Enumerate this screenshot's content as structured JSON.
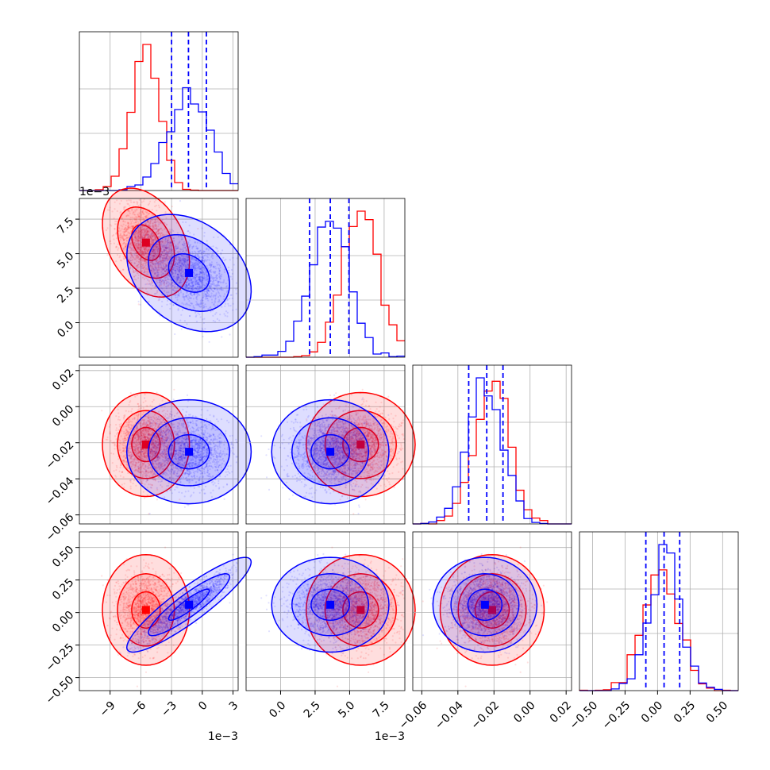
{
  "colors": {
    "series_a": "#ff0000",
    "series_b": "#0000ff",
    "grid": "#b0b0b0",
    "axes": "#000000"
  },
  "chart_data": {
    "type": "corner",
    "grid": true,
    "parameters": [
      {
        "range": [
          -12,
          3.5
        ],
        "ticks": [
          -9,
          -6,
          -3,
          0,
          3
        ],
        "tick_labels": [
          "−9",
          "−6",
          "−3",
          "0",
          "3"
        ],
        "offset_label": "1e−3"
      },
      {
        "range": [
          -2.5,
          9
        ],
        "ticks": [
          0.0,
          2.5,
          5.0,
          7.5
        ],
        "tick_labels": [
          "0.0",
          "2.5",
          "5.0",
          "7.5"
        ],
        "offset_label": "1e−3"
      },
      {
        "range": [
          -0.065,
          0.023
        ],
        "ticks": [
          -0.06,
          -0.04,
          -0.02,
          0.0,
          0.02
        ],
        "tick_labels": [
          "−0.06",
          "−0.04",
          "−0.02",
          "0.00",
          "0.02"
        ],
        "offset_label": ""
      },
      {
        "range": [
          -0.6,
          0.62
        ],
        "ticks": [
          -0.5,
          -0.25,
          0.0,
          0.25,
          0.5
        ],
        "tick_labels": [
          "−0.50",
          "−0.25",
          "0.00",
          "0.25",
          "0.50"
        ],
        "offset_label": ""
      }
    ],
    "series": [
      {
        "color": "#ff0000",
        "means": [
          -5.5,
          5.8,
          -0.021,
          0.02
        ],
        "sigmas": [
          1.4,
          1.3,
          0.0095,
          0.14
        ],
        "correlations": [
          [
            1,
            -0.35,
            0.0,
            0.0
          ],
          [
            -0.35,
            1,
            0.0,
            0.0
          ],
          [
            0.0,
            0.0,
            1,
            0.0
          ],
          [
            0.0,
            0.0,
            0.0,
            1
          ]
        ]
      },
      {
        "color": "#0000ff",
        "means": [
          -1.3,
          3.6,
          -0.025,
          0.06
        ],
        "sigmas": [
          2.0,
          1.4,
          0.0095,
          0.12
        ],
        "correlations": [
          [
            1,
            -0.3,
            0.0,
            0.9
          ],
          [
            -0.3,
            1,
            0.0,
            0.0
          ],
          [
            0.0,
            0.0,
            1,
            0.0
          ],
          [
            0.9,
            0.0,
            0.0,
            1
          ]
        ]
      }
    ],
    "quantile_lines": {
      "color": "#0000ff",
      "values": [
        [
          -3.0,
          -1.35,
          0.4
        ],
        [
          2.1,
          3.6,
          4.95
        ],
        [
          -0.034,
          -0.024,
          -0.015
        ],
        [
          -0.09,
          0.05,
          0.17
        ]
      ]
    },
    "hist_bins": 20,
    "contour_levels": [
      0.39,
      0.86,
      0.99
    ]
  }
}
